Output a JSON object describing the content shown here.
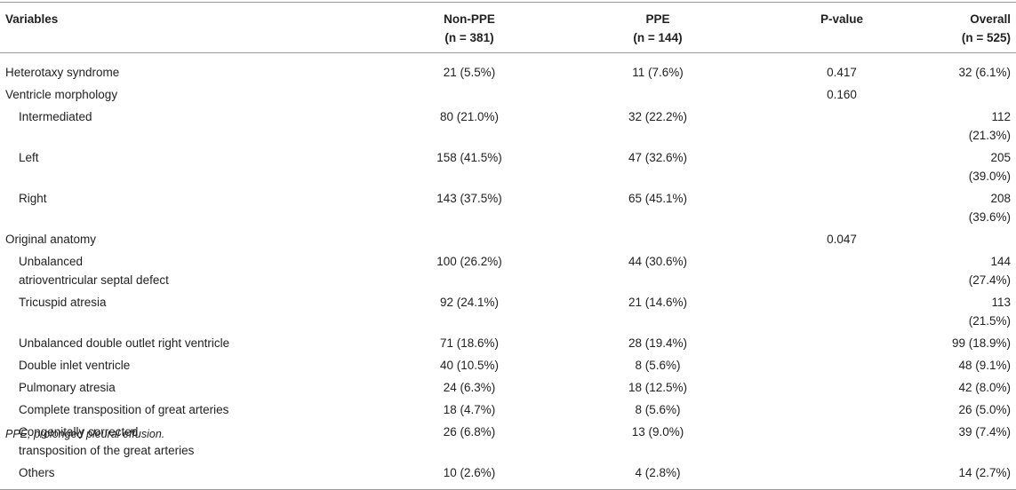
{
  "table": {
    "header": [
      {
        "name": "Variables"
      },
      {
        "name": "Non-PPE",
        "n": "(n = 381)"
      },
      {
        "name": "PPE",
        "n": "(n = 144)"
      },
      {
        "name": "P-value"
      },
      {
        "name": "Overall",
        "n": "(n = 525)"
      }
    ],
    "rows": [
      {
        "cells": [
          "Heterotaxy syndrome",
          "21 (5.5%)",
          "11 (7.6%)",
          "0.417",
          "32 (6.1%)"
        ]
      },
      {
        "cells": [
          "Ventricle morphology",
          null,
          null,
          "0.160",
          null
        ],
        "items": [
          {
            "cells": [
              "Intermediated",
              "80 (21.0%)",
              "32 (22.2%)",
              null,
              "112 (21.3%)"
            ]
          },
          {
            "cells": [
              "Left",
              "158 (41.5%)",
              "47 (32.6%)",
              null,
              "205 (39.0%)"
            ]
          },
          {
            "cells": [
              "Right",
              "143 (37.5%)",
              "65 (45.1%)",
              null,
              "208 (39.6%)"
            ]
          }
        ]
      },
      {
        "cells": [
          "Original anatomy",
          null,
          null,
          "0.047",
          null
        ],
        "items": [
          {
            "cells": [
              "Unbalanced\natrioventricular septal defect",
              "100 (26.2%)",
              "44 (30.6%)",
              null,
              "144 (27.4%)"
            ]
          },
          {
            "cells": [
              "Tricuspid atresia",
              "92 (24.1%)",
              "21 (14.6%)",
              null,
              "113 (21.5%)"
            ]
          },
          {
            "cells": [
              "Unbalanced double outlet right ventricle",
              "71 (18.6%)",
              "28 (19.4%)",
              null,
              "99 (18.9%)"
            ]
          },
          {
            "cells": [
              "Double inlet ventricle",
              "40 (10.5%)",
              "8 (5.6%)",
              null,
              "48 (9.1%)"
            ]
          },
          {
            "cells": [
              "Pulmonary atresia",
              "24 (6.3%)",
              "18 (12.5%)",
              null,
              "42 (8.0%)"
            ]
          },
          {
            "cells": [
              "Complete transposition of great arteries",
              "18 (4.7%)",
              "8 (5.6%)",
              null,
              "26 (5.0%)"
            ]
          },
          {
            "cells": [
              "Congenitally corrected\ntransposition of the great arteries",
              "26 (6.8%)",
              "13 (9.0%)",
              null,
              "39 (7.4%)"
            ]
          },
          {
            "cells": [
              "Others",
              "10 (2.6%)",
              "4 (2.8%)",
              null,
              "14 (2.7%)"
            ]
          }
        ]
      }
    ]
  },
  "footnote": "PPE, prolonged pleural effusion."
}
